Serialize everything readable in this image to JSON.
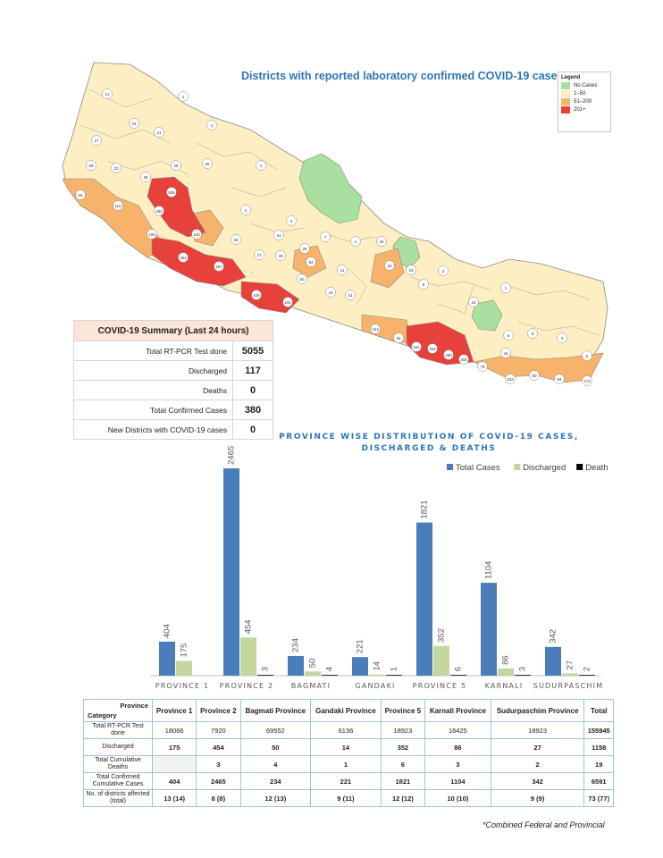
{
  "map": {
    "title": "Districts with reported laboratory confirmed COVID-19 cases",
    "legend": {
      "title": "Legend",
      "items": [
        {
          "label": "No Cases",
          "color": "#a9e0a0"
        },
        {
          "label": "1–50",
          "color": "#fdefc3"
        },
        {
          "label": "51–200",
          "color": "#f7b36b"
        },
        {
          "label": "201+",
          "color": "#e8403a"
        }
      ]
    },
    "district_labels": [
      "12",
      "1",
      "15",
      "21",
      "1",
      "27",
      "29",
      "23",
      "35",
      "28",
      "26",
      "1",
      "60",
      "110",
      "536",
      "252",
      "140",
      "105",
      "323",
      "257",
      "349",
      "241",
      "3",
      "33",
      "41",
      "27",
      "28",
      "3",
      "26",
      "84",
      "7",
      "50",
      "11",
      "43",
      "41",
      "1",
      "25",
      "20",
      "16",
      "6",
      "22",
      "4",
      "1",
      "44",
      "6",
      "8",
      "3",
      "2",
      "154",
      "94",
      "344",
      "334",
      "290",
      "205",
      "79",
      "152",
      "60",
      "94",
      "172"
    ]
  },
  "summary": {
    "title": "COVID-19 Summary (Last 24 hours)",
    "rows": [
      {
        "label": "Total RT-PCR Test done",
        "value": "5055"
      },
      {
        "label": "Discharged",
        "value": "117"
      },
      {
        "label": "Deaths",
        "value": "0"
      },
      {
        "label": "Total Confirmed Cases",
        "value": "380"
      },
      {
        "label": "New Districts with COVID-19 cases",
        "value": "0"
      }
    ]
  },
  "chart_data": {
    "type": "bar",
    "title": "PROVINCE WISE DISTRIBUTION OF COVID-19 CASES, DISCHARGED & DEATHS",
    "categories": [
      "PROVINCE 1",
      "PROVINCE 2",
      "BAGMATI",
      "GANDAKI",
      "PROVINCE 5",
      "KARNALI",
      "SUDURPASCHIM"
    ],
    "series": [
      {
        "name": "Total Cases",
        "color": "#4a7ebb",
        "values": [
          404,
          2465,
          234,
          221,
          1821,
          1104,
          342
        ]
      },
      {
        "name": "Discharged",
        "color": "#c3d69b",
        "values": [
          175,
          454,
          50,
          14,
          352,
          86,
          27
        ]
      },
      {
        "name": "Death",
        "color": "#000000",
        "values": [
          0,
          3,
          4,
          1,
          6,
          3,
          2
        ]
      }
    ],
    "value_labels": [
      [
        "404",
        "175",
        ""
      ],
      [
        "2465",
        "454",
        "3"
      ],
      [
        "234",
        "50",
        "4"
      ],
      [
        "221",
        "14",
        "1"
      ],
      [
        "1821",
        "352",
        "6"
      ],
      [
        "1104",
        "86",
        "3"
      ],
      [
        "342",
        "27",
        "2"
      ]
    ],
    "ylim": [
      0,
      2465
    ],
    "legend_position": "top-right",
    "grid": false
  },
  "table": {
    "corner_top": "Province",
    "corner_bottom": "Category",
    "headers": [
      "Province 1",
      "Province 2",
      "Bagmati Province",
      "Gandaki Province",
      "Province 5",
      "Karnali Province",
      "Sudurpaschim Province",
      "Total"
    ],
    "rows": [
      {
        "label": "Total RT-PCR Test done",
        "values": [
          "18066",
          "7920",
          "69552",
          "6136",
          "18923",
          "16425",
          "18923",
          "155945"
        ]
      },
      {
        "label": "Discharged",
        "values": [
          "175",
          "454",
          "50",
          "14",
          "352",
          "86",
          "27",
          "1158"
        ]
      },
      {
        "label": "Total Cumulative Deaths",
        "values": [
          "",
          "3",
          "4",
          "1",
          "6",
          "3",
          "2",
          "19"
        ]
      },
      {
        "label": "Total Confirmed Cumulative Cases",
        "values": [
          "404",
          "2465",
          "234",
          "221",
          "1821",
          "1104",
          "342",
          "6591"
        ]
      },
      {
        "label": "No. of districts affected (total)",
        "values": [
          "13 (14)",
          "8 (8)",
          "12 (13)",
          "9 (11)",
          "12 (12)",
          "10 (10)",
          "9 (9)",
          "73 (77)"
        ]
      }
    ]
  },
  "footnote": "*Combined Federal and Provincial"
}
